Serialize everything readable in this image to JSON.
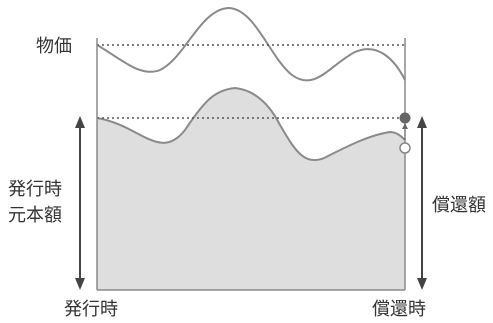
{
  "labels": {
    "price": "物価",
    "issue_principal_line1": "発行時",
    "issue_principal_line2": "元本額",
    "redemption_amount": "償還額",
    "issue_date": "発行時",
    "redemption_date": "償還時"
  },
  "colors": {
    "line": "#8a8a8a",
    "fill": "#dedede",
    "arrow": "#444444",
    "dot_dark": "#666666",
    "dot_light": "#ffffff",
    "text": "#333333"
  }
}
